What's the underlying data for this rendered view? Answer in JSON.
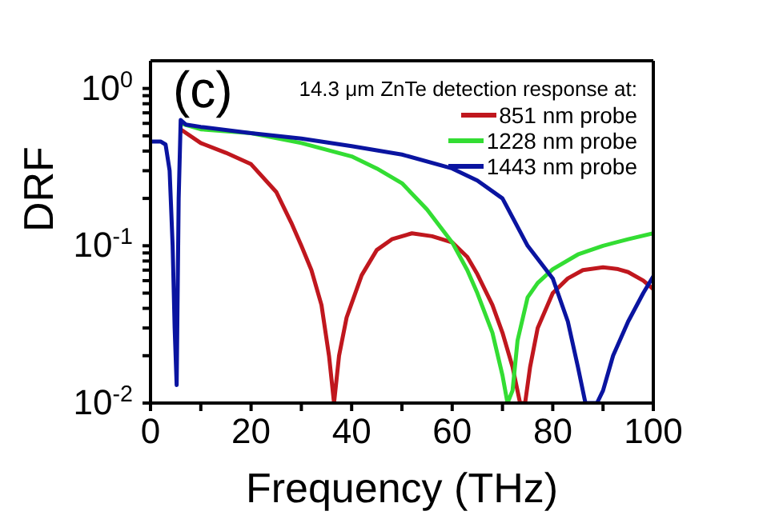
{
  "chart_data": {
    "type": "line",
    "xlabel": "Frequency (THz)",
    "ylabel": "DRF",
    "legend_title": "14.3 μm ZnTe detection response at:",
    "annotations": [
      "(c)"
    ],
    "log": "y",
    "grid": false,
    "legend": "top right",
    "marker": "none",
    "line_style": "solid",
    "xlim": [
      0,
      100
    ],
    "xticks": [
      0,
      {
        "value": 10,
        "label": null
      },
      20,
      {
        "value": 30,
        "label": null
      },
      40,
      {
        "value": 50,
        "label": null
      },
      60,
      {
        "value": 70,
        "label": null
      },
      80,
      {
        "value": 90,
        "label": null
      },
      100
    ],
    "ylim": [
      0.01,
      1.5
    ],
    "yticks": [
      {
        "value": 0.01,
        "label": "10$^{-2}$"
      },
      {
        "value": 0.02,
        "label": null
      },
      {
        "value": 0.03,
        "label": null
      },
      {
        "value": 0.04,
        "label": null
      },
      {
        "value": 0.05,
        "label": null
      },
      {
        "value": 0.06,
        "label": null
      },
      {
        "value": 0.07,
        "label": null
      },
      {
        "value": 0.08,
        "label": null
      },
      {
        "value": 0.09,
        "label": null
      },
      {
        "value": 0.1,
        "label": "10$^{-1}$"
      },
      {
        "value": 0.2,
        "label": null
      },
      {
        "value": 0.3,
        "label": null
      },
      {
        "value": 0.4,
        "label": null
      },
      {
        "value": 0.5,
        "label": null
      },
      {
        "value": 0.6,
        "label": null
      },
      {
        "value": 0.7,
        "label": null
      },
      {
        "value": 0.8,
        "label": null
      },
      {
        "value": 0.9,
        "label": null
      },
      {
        "value": 1,
        "label": "10$^{0}$"
      }
    ],
    "series": [
      {
        "name": "851 nm probe",
        "color": "#c0171e",
        "x": [
          6,
          10,
          15,
          20,
          25,
          28,
          30,
          32,
          34,
          35.5,
          36.5,
          37.5,
          39,
          40,
          42,
          45,
          48,
          52,
          56,
          60,
          63,
          65,
          68,
          70,
          72,
          73.5,
          74.5,
          75.5,
          77,
          80,
          83,
          86,
          90,
          93,
          95,
          98,
          100
        ],
        "values": [
          0.55,
          0.45,
          0.39,
          0.33,
          0.22,
          0.14,
          0.1,
          0.07,
          0.042,
          0.02,
          0.01,
          0.02,
          0.035,
          0.043,
          0.065,
          0.094,
          0.11,
          0.12,
          0.115,
          0.105,
          0.085,
          0.066,
          0.042,
          0.028,
          0.017,
          0.01,
          0.01,
          0.017,
          0.03,
          0.05,
          0.062,
          0.07,
          0.073,
          0.071,
          0.068,
          0.06,
          0.053
        ]
      },
      {
        "name": "1228 nm probe",
        "color": "#33dd33",
        "x": [
          6,
          10,
          20,
          30,
          40,
          45,
          50,
          55,
          60,
          63,
          65,
          68,
          70,
          71,
          72,
          73,
          75,
          77,
          80,
          85,
          90,
          95,
          100
        ],
        "values": [
          0.6,
          0.55,
          0.52,
          0.45,
          0.37,
          0.31,
          0.25,
          0.17,
          0.105,
          0.07,
          0.05,
          0.028,
          0.015,
          0.01,
          0.012,
          0.025,
          0.047,
          0.058,
          0.071,
          0.088,
          0.1,
          0.11,
          0.12
        ]
      },
      {
        "name": "1443 nm probe",
        "color": "#0a14a0",
        "x": [
          0,
          2,
          3,
          3.8,
          4.4,
          4.8,
          5.2,
          5.6,
          6,
          7,
          10,
          20,
          30,
          40,
          50,
          60,
          65,
          70,
          75,
          80,
          83,
          85,
          86.5,
          87.7,
          88.8,
          90,
          92,
          95,
          98,
          100
        ],
        "values": [
          0.46,
          0.46,
          0.44,
          0.3,
          0.1,
          0.03,
          0.013,
          0.2,
          0.63,
          0.59,
          0.57,
          0.52,
          0.48,
          0.43,
          0.38,
          0.31,
          0.26,
          0.2,
          0.1,
          0.062,
          0.033,
          0.017,
          0.01,
          0.01,
          0.01,
          0.012,
          0.02,
          0.033,
          0.05,
          0.064
        ]
      }
    ]
  }
}
